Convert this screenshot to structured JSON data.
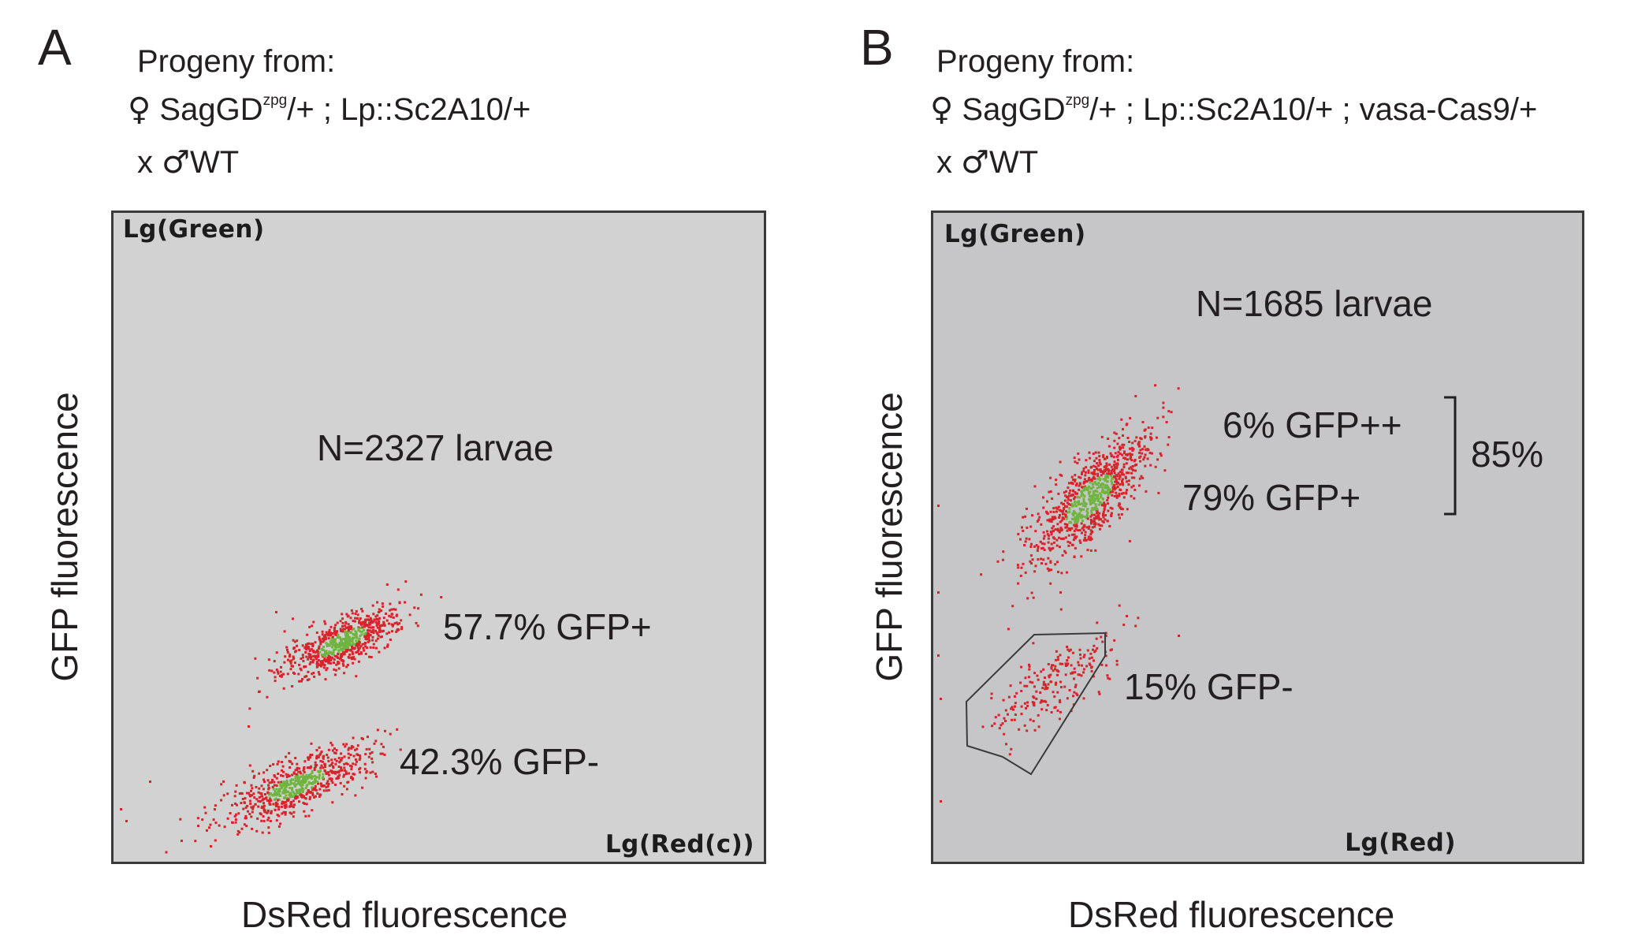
{
  "chart_data": [
    {
      "type": "scatter",
      "panel": "A",
      "header": {
        "line1": "Progeny from:",
        "female_symbol": "♀",
        "line2_pre": "SagGD",
        "line2_sup": "zpg",
        "line2_post": "/+ ; Lp::Sc2A10/+",
        "cross": "x",
        "male_symbol": "♂",
        "line3": "WT"
      },
      "y_corner_label": "Lg(Green)",
      "x_corner_label": "Lg(Red(c))",
      "xlabel": "DsRed fluorescence",
      "ylabel": "GFP fluorescence",
      "n_label": "N=2327 larvae",
      "background": "#d2d2d2",
      "populations": [
        {
          "label": "57.7% GFP+",
          "percent": 57.7,
          "center": [
            0.35,
            0.34
          ],
          "spread": [
            0.05,
            0.028
          ],
          "count": 700,
          "gate": false
        },
        {
          "label": "42.3% GFP-",
          "percent": 42.3,
          "center": [
            0.28,
            0.12
          ],
          "spread": [
            0.06,
            0.03
          ],
          "count": 700,
          "gate": false
        }
      ]
    },
    {
      "type": "scatter",
      "panel": "B",
      "header": {
        "line1": "Progeny from:",
        "female_symbol": "♀",
        "line2_pre": "SagGD",
        "line2_sup": "zpg",
        "line2_post": "/+ ; Lp::Sc2A10/+ ; vasa-Cas9/+",
        "cross": "x",
        "male_symbol": "♂",
        "line3": "WT"
      },
      "y_corner_label": "Lg(Green)",
      "x_corner_label": "Lg(Red)",
      "xlabel": "DsRed fluorescence",
      "ylabel": "GFP fluorescence",
      "n_label": "N=1685 larvae",
      "background": "#c6c6c8",
      "populations": [
        {
          "label": "6% GFP++",
          "percent": 6
        },
        {
          "label": "79% GFP+",
          "percent": 79,
          "center": [
            0.24,
            0.56
          ],
          "spread": [
            0.05,
            0.05
          ],
          "count": 900,
          "gate": false
        },
        {
          "label": "15% GFP-",
          "percent": 15,
          "center": [
            0.19,
            0.28
          ],
          "spread": [
            0.055,
            0.04
          ],
          "count": 220,
          "gate": true
        }
      ],
      "bracket_label": "85%"
    }
  ],
  "colors": {
    "dot_red": "#d8232a",
    "dot_green": "#6fb43f",
    "gate_line": "#3a3a3a",
    "text": "#231f20"
  }
}
